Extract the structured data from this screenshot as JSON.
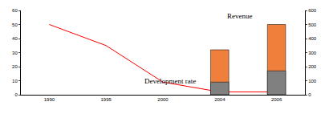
{
  "chart_data": {
    "type": "bar",
    "categories": [
      "1990",
      "1995",
      "2000",
      "2004",
      "2006"
    ],
    "series": [
      {
        "name": "Revenue",
        "type": "bar",
        "color": "#f07f3c",
        "values": [
          null,
          null,
          null,
          320,
          500
        ],
        "axis": "y2"
      },
      {
        "type": "bar",
        "color": "#808080",
        "values": [
          null,
          null,
          null,
          90,
          170
        ],
        "axis": "y2"
      },
      {
        "name": "Development rate",
        "type": "line",
        "color": "#ff0000",
        "values": [
          50,
          35,
          9,
          2,
          2
        ]
      }
    ],
    "ylim": [
      0,
      60
    ],
    "yticks": [
      0,
      10,
      20,
      30,
      40,
      50,
      60
    ],
    "y2lim": [
      0,
      600
    ],
    "y2ticks": [
      0,
      100,
      200,
      300,
      400,
      500,
      600
    ],
    "grid": false
  }
}
